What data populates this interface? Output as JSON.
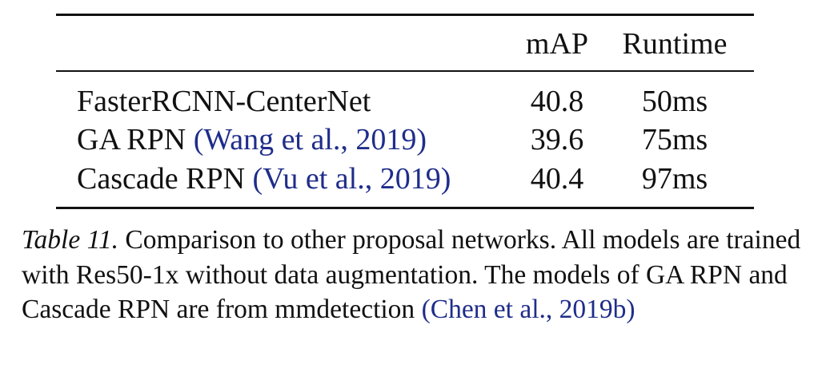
{
  "table": {
    "headers": {
      "method": "",
      "map": "mAP",
      "runtime": "Runtime"
    },
    "rows": [
      {
        "method": "FasterRCNN-CenterNet",
        "citation": "",
        "map": "40.8",
        "runtime": "50ms"
      },
      {
        "method": "GA RPN",
        "citation": "Wang et al., 2019",
        "map": "39.6",
        "runtime": "75ms"
      },
      {
        "method": "Cascade RPN",
        "citation": "Vu et al., 2019",
        "map": "40.4",
        "runtime": "97ms"
      }
    ]
  },
  "caption": {
    "label": "Table 11.",
    "text": "Comparison to other proposal networks. All models are trained with Res50-1x without data augmentation. The models of GA RPN and Cascade RPN are from mmdetection",
    "citation": "Chen et al., 2019b"
  },
  "colors": {
    "text": "#111111",
    "citation": "#1f2d8a"
  }
}
